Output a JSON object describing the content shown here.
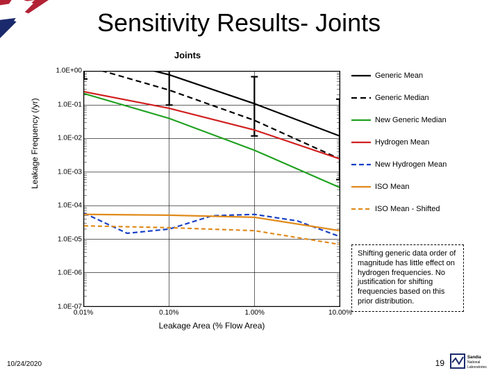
{
  "title": "Sensitivity Results- Joints",
  "chart": {
    "type": "line",
    "title": "Joints",
    "xlabel": "Leakage Area (% Flow Area)",
    "ylabel": "Leakage Frequency (/yr)",
    "x_log": true,
    "y_log": true,
    "x_ticks": [
      "0.01%",
      "0.10%",
      "1.00%",
      "10.00%"
    ],
    "x_tick_vals": [
      0.01,
      0.1,
      1.0,
      10.0
    ],
    "y_ticks": [
      "1.0E+00",
      "1.0E-01",
      "1.0E-02",
      "1.0E-03",
      "1.0E-04",
      "1.0E-05",
      "1.0E-06",
      "1.0E-07"
    ],
    "y_tick_vals": [
      1,
      0.1,
      0.01,
      0.001,
      0.0001,
      1e-05,
      1e-06,
      1e-07
    ],
    "grid_color": "#000000",
    "background_color": "#ffffff",
    "series": [
      {
        "name": "Generic Mean",
        "color": "#000000",
        "dash": "",
        "width": 2.2,
        "marker": null,
        "x": [
          0.01,
          0.1,
          1,
          10
        ],
        "y": [
          3.5,
          0.8,
          0.11,
          0.012
        ],
        "err_lo": [
          0.6,
          0.1,
          0.012,
          0.0006
        ],
        "err_hi": [
          9.0,
          3.2,
          0.7,
          0.15
        ]
      },
      {
        "name": "Generic Median",
        "color": "#000000",
        "dash": "8 5",
        "width": 2.2,
        "marker": null,
        "x": [
          0.01,
          0.1,
          1,
          10
        ],
        "y": [
          1.5,
          0.28,
          0.035,
          0.0025
        ]
      },
      {
        "name": "New Generic Median",
        "color": "#1fa11f",
        "dash": "",
        "width": 2.2,
        "marker": null,
        "x": [
          0.01,
          0.1,
          1,
          10
        ],
        "y": [
          0.22,
          0.04,
          0.0045,
          0.00035
        ]
      },
      {
        "name": "Hydrogen Mean",
        "color": "#d11f1f",
        "dash": "",
        "width": 2.2,
        "marker": null,
        "x": [
          0.01,
          0.1,
          1,
          10
        ],
        "y": [
          0.25,
          0.08,
          0.018,
          0.0025
        ]
      },
      {
        "name": "New Hydrogen Mean",
        "color": "#1740c4",
        "dash": "7 4",
        "width": 2.2,
        "marker": null,
        "x": [
          0.01,
          0.032,
          0.1,
          0.32,
          1,
          3.2,
          10
        ],
        "y": [
          6e-05,
          1.5e-05,
          2e-05,
          5e-05,
          5.5e-05,
          3.5e-05,
          1.2e-05
        ]
      },
      {
        "name": "ISO Mean",
        "color": "#e08a1a",
        "dash": "",
        "width": 2.2,
        "marker": null,
        "x": [
          0.01,
          0.1,
          1,
          10
        ],
        "y": [
          5.5e-05,
          5.2e-05,
          4.5e-05,
          1.8e-05
        ]
      },
      {
        "name": "ISO Mean - Shifted",
        "color": "#e08a1a",
        "dash": "6 4",
        "width": 2.2,
        "marker": null,
        "x": [
          0.01,
          0.1,
          1,
          10
        ],
        "y": [
          2.5e-05,
          2.2e-05,
          1.8e-05,
          7e-06
        ]
      }
    ]
  },
  "note": "Shifting generic data order of magnitude has little effect on hydrogen frequencies. No justification for shifting frequencies based on this prior distribution.",
  "footer_date": "10/24/2020",
  "page_number": "19",
  "logo_text": "Sandia National Laboratories",
  "colors": {
    "flag_red": "#b22234",
    "flag_blue": "#1a2a6c",
    "white": "#ffffff",
    "text": "#000000"
  },
  "typography": {
    "title_fontsize": 36,
    "title_weight": 400,
    "chart_title_fontsize": 13,
    "axis_label_fontsize": 12,
    "tick_fontsize": 10,
    "legend_fontsize": 11,
    "note_fontsize": 11
  }
}
